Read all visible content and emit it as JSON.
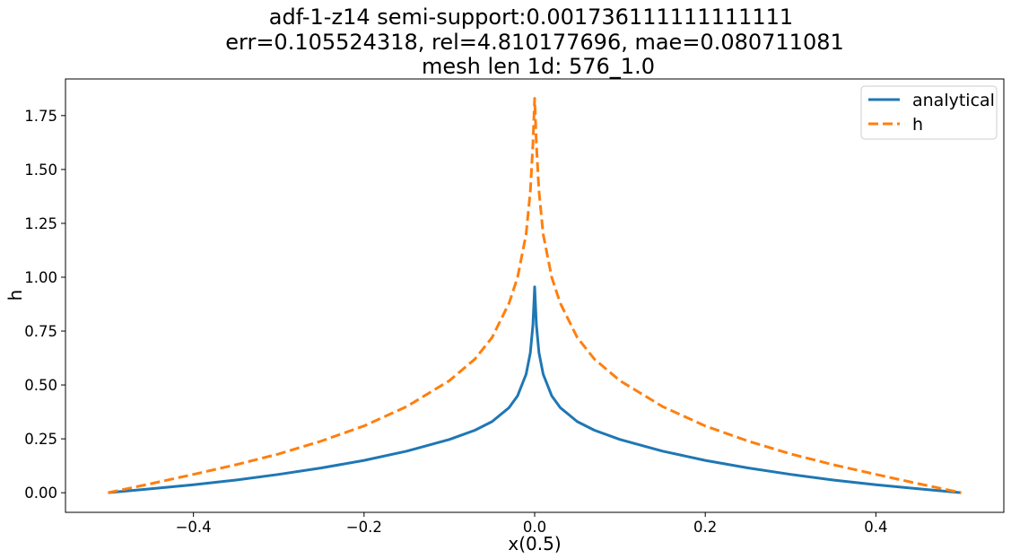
{
  "chart_data": {
    "type": "line",
    "title_lines": [
      "adf-1-z14  semi-support:0.001736111111111111",
      "err=0.105524318, rel=4.810177696, mae=0.080711081",
      "mesh len 1d: 576_1.0"
    ],
    "xlabel": "x(0.5)",
    "ylabel": "h",
    "xlim": [
      -0.55,
      0.55
    ],
    "ylim": [
      -0.091,
      1.92
    ],
    "x_ticks": [
      -0.4,
      -0.2,
      0.0,
      0.2,
      0.4
    ],
    "x_tick_labels": [
      "−0.4",
      "−0.2",
      "0.0",
      "0.2",
      "0.4"
    ],
    "y_ticks": [
      0.0,
      0.25,
      0.5,
      0.75,
      1.0,
      1.25,
      1.5,
      1.75
    ],
    "y_tick_labels": [
      "0.00",
      "0.25",
      "0.50",
      "0.75",
      "1.00",
      "1.25",
      "1.50",
      "1.75"
    ],
    "grid": false,
    "legend_position": "top-right",
    "series": [
      {
        "name": "analytical",
        "color": "#1f77b4",
        "style": "solid",
        "points": [
          [
            -0.5,
            0.0
          ],
          [
            -0.45,
            0.018
          ],
          [
            -0.4,
            0.037
          ],
          [
            -0.35,
            0.059
          ],
          [
            -0.3,
            0.085
          ],
          [
            -0.25,
            0.115
          ],
          [
            -0.2,
            0.15
          ],
          [
            -0.15,
            0.193
          ],
          [
            -0.1,
            0.247
          ],
          [
            -0.07,
            0.29
          ],
          [
            -0.05,
            0.33
          ],
          [
            -0.03,
            0.395
          ],
          [
            -0.02,
            0.45
          ],
          [
            -0.01,
            0.55
          ],
          [
            -0.005,
            0.65
          ],
          [
            -0.002,
            0.78
          ],
          [
            0.0,
            0.955
          ],
          [
            0.002,
            0.78
          ],
          [
            0.005,
            0.65
          ],
          [
            0.01,
            0.55
          ],
          [
            0.02,
            0.45
          ],
          [
            0.03,
            0.395
          ],
          [
            0.05,
            0.33
          ],
          [
            0.07,
            0.29
          ],
          [
            0.1,
            0.247
          ],
          [
            0.15,
            0.193
          ],
          [
            0.2,
            0.15
          ],
          [
            0.25,
            0.115
          ],
          [
            0.3,
            0.085
          ],
          [
            0.35,
            0.059
          ],
          [
            0.4,
            0.037
          ],
          [
            0.45,
            0.018
          ],
          [
            0.5,
            0.0
          ]
        ]
      },
      {
        "name": "h",
        "color": "#ff7f0e",
        "style": "dashed",
        "points": [
          [
            -0.5,
            0.0
          ],
          [
            -0.45,
            0.042
          ],
          [
            -0.4,
            0.085
          ],
          [
            -0.35,
            0.13
          ],
          [
            -0.3,
            0.18
          ],
          [
            -0.25,
            0.24
          ],
          [
            -0.2,
            0.31
          ],
          [
            -0.15,
            0.4
          ],
          [
            -0.1,
            0.52
          ],
          [
            -0.07,
            0.62
          ],
          [
            -0.05,
            0.72
          ],
          [
            -0.03,
            0.88
          ],
          [
            -0.02,
            1.0
          ],
          [
            -0.01,
            1.2
          ],
          [
            -0.005,
            1.4
          ],
          [
            -0.002,
            1.62
          ],
          [
            0.0,
            1.83
          ],
          [
            0.002,
            1.62
          ],
          [
            0.005,
            1.4
          ],
          [
            0.01,
            1.2
          ],
          [
            0.02,
            1.0
          ],
          [
            0.03,
            0.88
          ],
          [
            0.05,
            0.72
          ],
          [
            0.07,
            0.62
          ],
          [
            0.1,
            0.52
          ],
          [
            0.15,
            0.4
          ],
          [
            0.2,
            0.31
          ],
          [
            0.25,
            0.24
          ],
          [
            0.3,
            0.18
          ],
          [
            0.35,
            0.13
          ],
          [
            0.4,
            0.085
          ],
          [
            0.45,
            0.042
          ],
          [
            0.5,
            0.0
          ]
        ]
      }
    ]
  }
}
